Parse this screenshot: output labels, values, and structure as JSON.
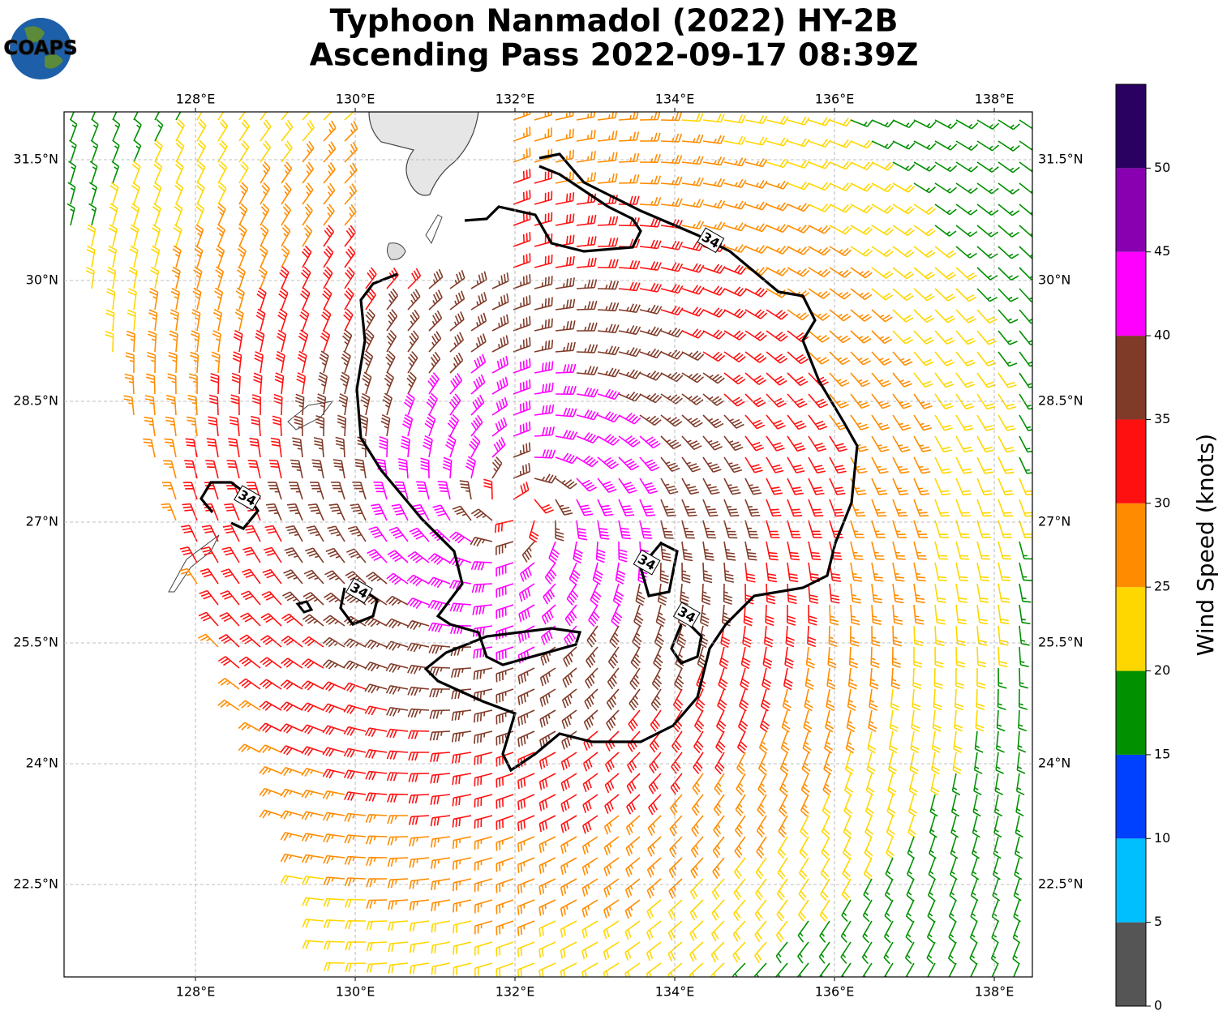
{
  "title": [
    "Typhoon Nanmadol (2022) HY-2B",
    "Ascending Pass 2022-09-17 08:39Z"
  ],
  "logo": "COAPS",
  "map": {
    "xlim": [
      126.355,
      138.477
    ],
    "ylim": [
      21.352,
      32.094
    ],
    "xticks": [
      {
        "value": 128,
        "label": "128°E"
      },
      {
        "value": 130,
        "label": "130°E"
      },
      {
        "value": 132,
        "label": "132°E"
      },
      {
        "value": 134,
        "label": "134°E"
      },
      {
        "value": 136,
        "label": "136°E"
      },
      {
        "value": 138,
        "label": "138°E"
      }
    ],
    "yticks": [
      {
        "value": 22.5,
        "label": "22.5°N"
      },
      {
        "value": 24,
        "label": "24°N"
      },
      {
        "value": 25.5,
        "label": "25.5°N"
      },
      {
        "value": 27,
        "label": "27°N"
      },
      {
        "value": 28.5,
        "label": "28.5°N"
      },
      {
        "value": 30,
        "label": "30°N"
      },
      {
        "value": 31.5,
        "label": "31.5°N"
      }
    ],
    "grid": true,
    "contour_labels": [
      {
        "text": "34",
        "lon": 134.45,
        "lat": 30.5
      },
      {
        "text": "34",
        "lon": 128.65,
        "lat": 27.3
      },
      {
        "text": "34",
        "lon": 130.05,
        "lat": 26.15
      },
      {
        "text": "34",
        "lon": 133.65,
        "lat": 26.5
      },
      {
        "text": "34",
        "lon": 134.15,
        "lat": 25.85
      }
    ]
  },
  "colorbar": {
    "label": "Wind Speed (knots)",
    "levels": [
      0,
      5,
      10,
      15,
      20,
      25,
      30,
      35,
      40,
      45,
      50,
      55
    ],
    "colors": [
      "#555555",
      "#00bfff",
      "#0040ff",
      "#009000",
      "#ffd700",
      "#ff8c00",
      "#ff1010",
      "#803a28",
      "#ff00ff",
      "#8800b0",
      "#2a0060"
    ],
    "ticks": [
      0,
      5,
      10,
      15,
      20,
      25,
      30,
      35,
      40,
      45,
      50
    ]
  }
}
